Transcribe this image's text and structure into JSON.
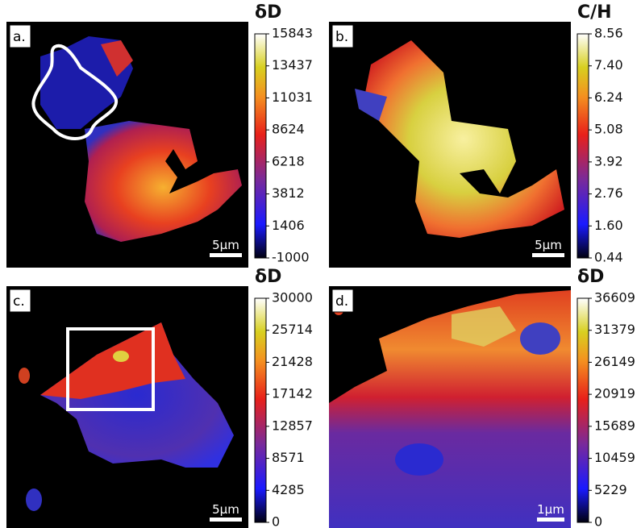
{
  "panels": [
    {
      "label": "a.",
      "colorbar": {
        "title": "δD",
        "ticks": [
          "15843",
          "13437",
          "11031",
          "8624",
          "6218",
          "3812",
          "1406",
          "-1000"
        ]
      },
      "scale_bar": "5μm"
    },
    {
      "label": "b.",
      "colorbar": {
        "title": "C/H",
        "ticks": [
          "8.56",
          "7.40",
          "6.24",
          "5.08",
          "3.92",
          "2.76",
          "1.60",
          "0.44"
        ]
      },
      "scale_bar": "5μm"
    },
    {
      "label": "c.",
      "colorbar": {
        "title": "δD",
        "ticks": [
          "30000",
          "25714",
          "21428",
          "17142",
          "12857",
          "8571",
          "4285",
          "0"
        ]
      },
      "scale_bar": "5μm"
    },
    {
      "label": "d.",
      "colorbar": {
        "title": "δD",
        "ticks": [
          "36609",
          "31379",
          "26149",
          "20919",
          "15689",
          "10459",
          "5229",
          "0"
        ]
      },
      "scale_bar": "1μm"
    }
  ]
}
